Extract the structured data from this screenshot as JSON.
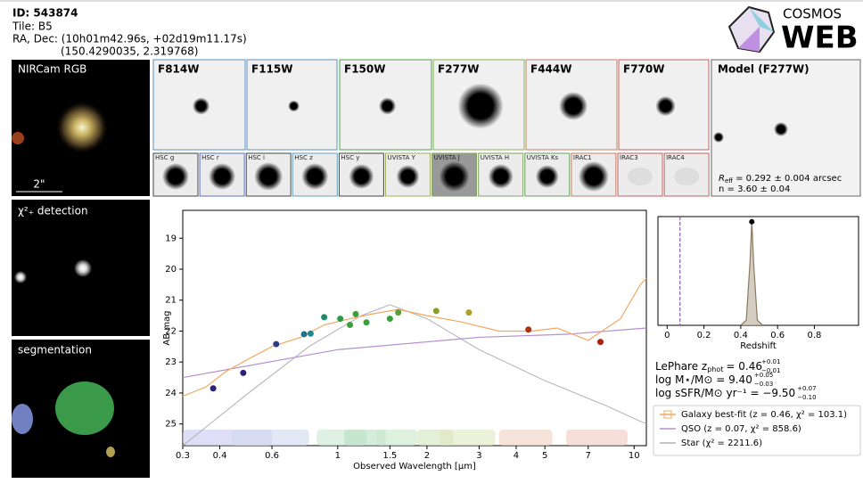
{
  "header": {
    "id": "ID: 543874",
    "tile": "Tile: B5",
    "radec": "RA, Dec: (10h01m42.96s, +02d19m11.17s)",
    "radec_deg": "(150.4290035, 2.319768)"
  },
  "logo": {
    "top": "COSMOS",
    "bottom": "WEB"
  },
  "panels": {
    "rgb": "NIRCam RGB",
    "scale": "2\"",
    "chi": "χ²₊ detection",
    "segmentation": "segmentation"
  },
  "bands": [
    "F814W",
    "F115W",
    "F150W",
    "F277W",
    "F444W",
    "F770W"
  ],
  "small_bands": [
    "HSC g",
    "HSC r",
    "HSC i",
    "HSC z",
    "HSC y",
    "UVISTA Y",
    "UVISTA J",
    "UVISTA H",
    "UVISTA Ks",
    "IRAC1",
    "IRAC3",
    "IRAC4"
  ],
  "model": {
    "title": "Model (F277W)",
    "reff": {
      "text": "R",
      "sub": "eff",
      "rest": "= 0.292 ± 0.004 arcsec"
    },
    "n": "n = 3.60 ± 0.04"
  },
  "fit": [
    {
      "text": "LePhare z",
      "sub": "phot",
      "eq": "= 0.46",
      "up": "+0.01",
      "down": "−0.01"
    },
    {
      "text": "log M⋆/M⊙ = 9.40",
      "up": "+0.05",
      "down": "−0.03"
    },
    {
      "text": "log sSFR/M⊙ yr⁻¹ = −9.50",
      "up": "+0.07",
      "down": "−0.10"
    }
  ],
  "chart_data": [
    {
      "type": "scatter",
      "xlabel": "Observed Wavelength [μm]",
      "ylabel": "AB mag",
      "xscale": "log",
      "xlim": [
        0.3,
        11
      ],
      "ylim": [
        25.7,
        18.1
      ],
      "xticks": [
        0.3,
        0.4,
        0.6,
        1,
        1.5,
        2,
        3,
        4,
        5,
        7,
        10
      ],
      "yticks": [
        19,
        20,
        21,
        22,
        23,
        24,
        25
      ],
      "series": [
        {
          "x": [
            0.38,
            0.48,
            0.62,
            0.77,
            0.81,
            0.9,
            1.02,
            1.1,
            1.15,
            1.25,
            1.5,
            1.6,
            2.15,
            2.77,
            4.4,
            7.7
          ],
          "values": [
            23.85,
            23.35,
            22.42,
            22.1,
            22.08,
            21.55,
            21.6,
            21.8,
            21.45,
            21.72,
            21.6,
            21.4,
            21.35,
            21.4,
            21.95,
            22.35
          ],
          "colors": [
            "#2a1f7a",
            "#2a1f7a",
            "#2a3f8a",
            "#1f6f8a",
            "#1f8a8a",
            "#1f8a6a",
            "#2a9a4a",
            "#3aa03a",
            "#3aa03a",
            "#3aa03a",
            "#3aa03a",
            "#5aa030",
            "#8aa020",
            "#b0a020",
            "#b03010",
            "#b02010"
          ]
        },
        {
          "name": "Galaxy best-fit (z = 0.46, χ² = 103.1)",
          "color": "#f0a860",
          "x": [
            0.3,
            0.36,
            0.42,
            0.5,
            0.6,
            0.75,
            0.9,
            1.1,
            1.3,
            1.6,
            2.0,
            2.6,
            3.5,
            4.5,
            5.5,
            7,
            9,
            10.5,
            11
          ],
          "values": [
            24.1,
            23.8,
            23.3,
            22.9,
            22.5,
            22.2,
            21.8,
            21.6,
            21.45,
            21.3,
            21.5,
            21.7,
            22.0,
            22.0,
            21.9,
            22.3,
            21.6,
            20.5,
            20.3
          ]
        },
        {
          "name": "QSO (z = 0.07, χ² = 858.6)",
          "color": "#b58fd0",
          "x": [
            0.3,
            1,
            3,
            6,
            11
          ],
          "values": [
            23.5,
            22.6,
            22.2,
            22.1,
            21.9
          ]
        },
        {
          "name": "Star (χ² = 2211.6)",
          "color": "#b0b0b0",
          "x": [
            0.3,
            0.5,
            0.8,
            1.2,
            1.5,
            2,
            3,
            5,
            8,
            11
          ],
          "values": [
            25.7,
            24.0,
            22.5,
            21.5,
            21.15,
            21.6,
            22.6,
            23.6,
            24.4,
            25.0
          ]
        }
      ]
    },
    {
      "type": "line",
      "xlabel": "Redshift",
      "xlim": [
        -0.05,
        1.04
      ],
      "ylim": [
        0,
        1.05
      ],
      "xticks": [
        0.0,
        0.2,
        0.4,
        0.6,
        0.8
      ],
      "color": "#8a7a60",
      "vline": 0.07,
      "vline_color": "#7a3fa0",
      "x": [
        0.4,
        0.43,
        0.45,
        0.46,
        0.47,
        0.49,
        0.52
      ],
      "values": [
        0,
        0.05,
        0.6,
        1,
        0.6,
        0.05,
        0
      ]
    }
  ]
}
